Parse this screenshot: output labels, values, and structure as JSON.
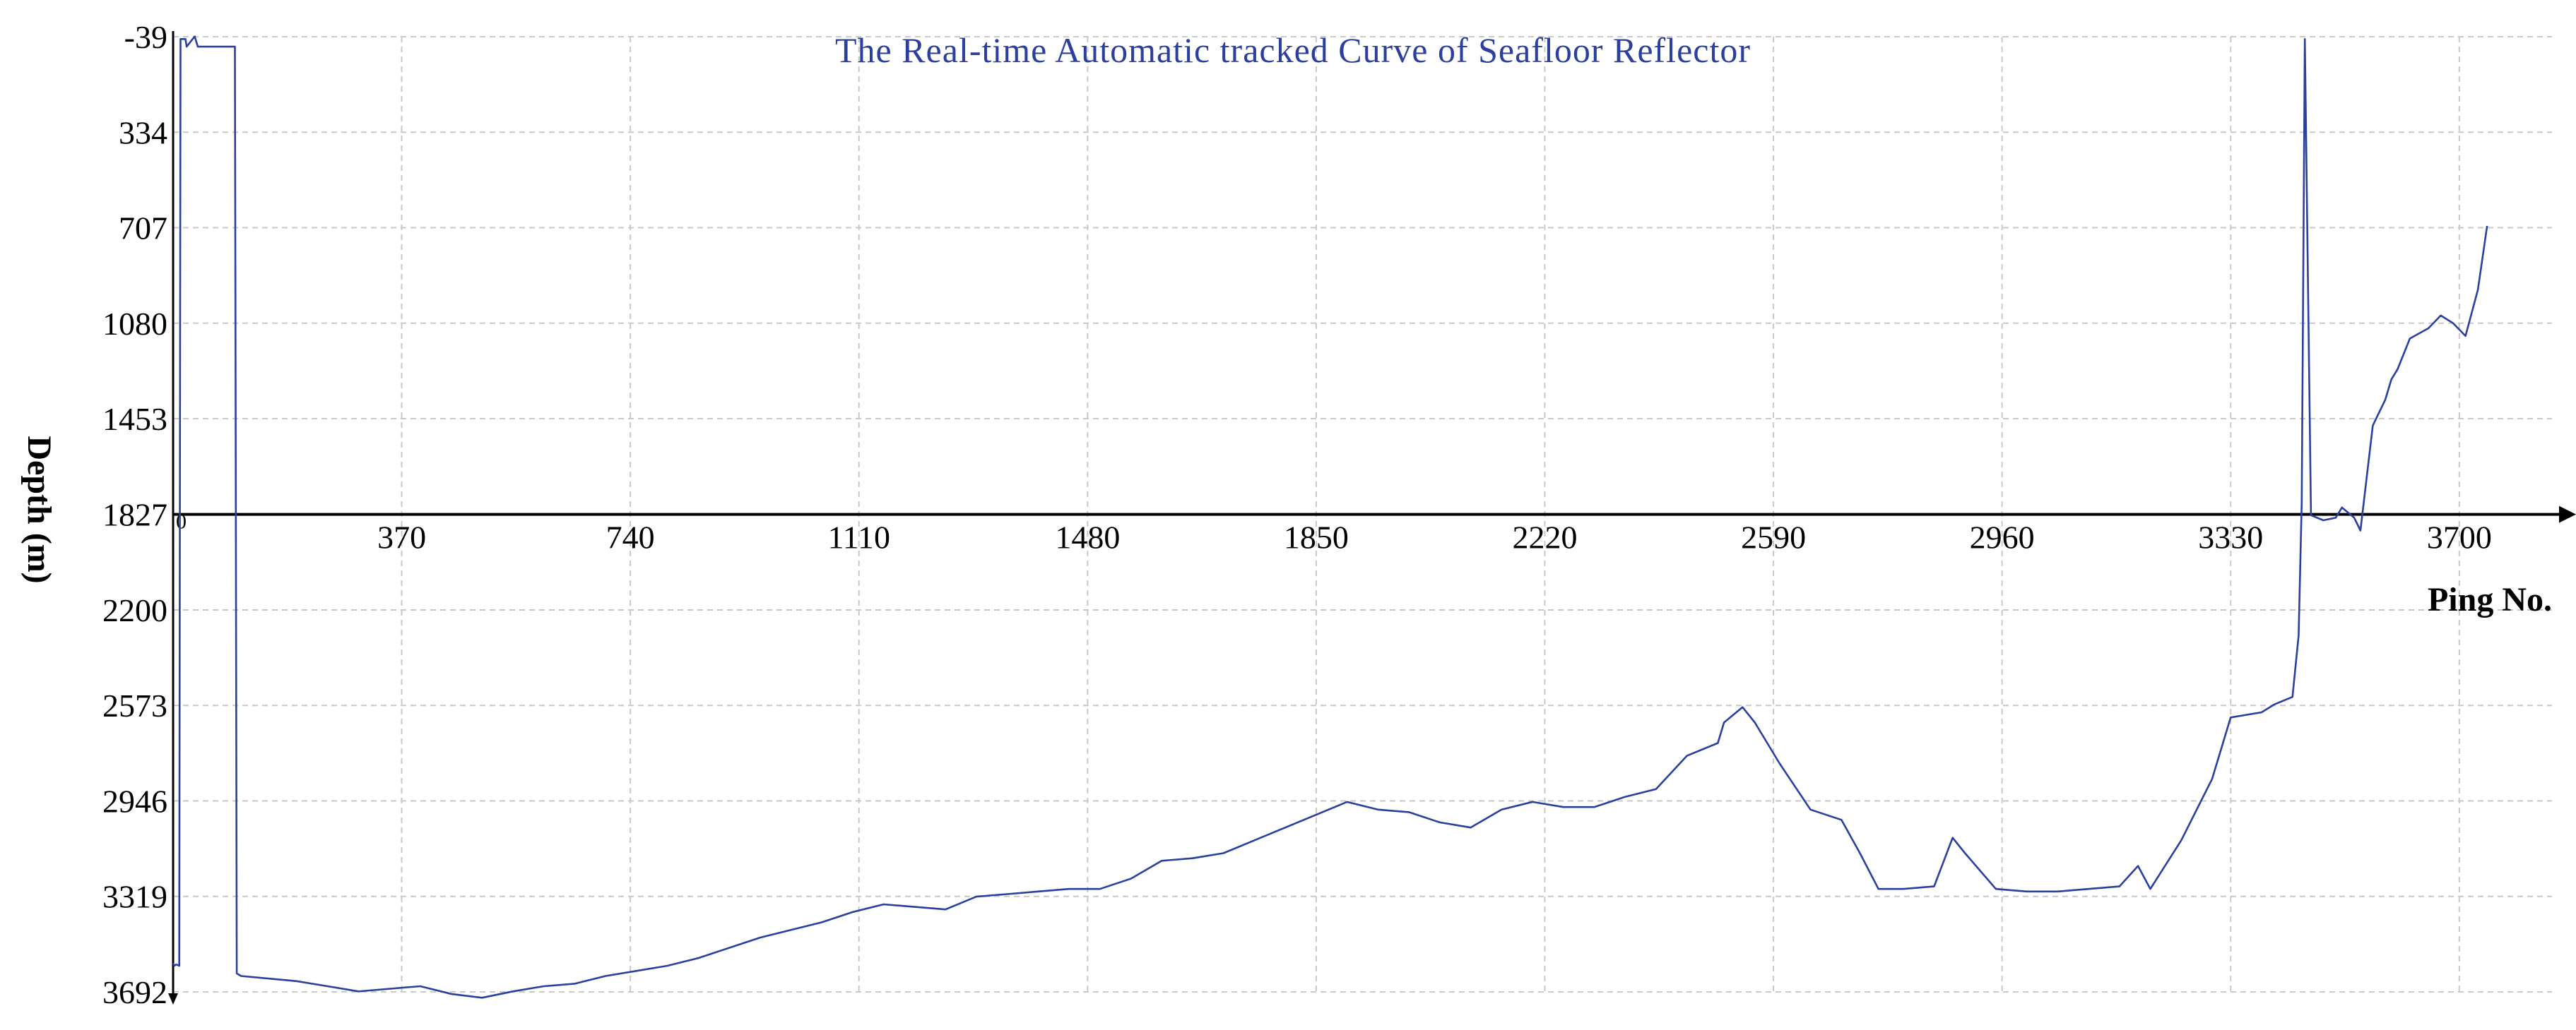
{
  "chart_data": {
    "type": "line",
    "title": "The Real-time Automatic tracked Curve of Seafloor Reflector",
    "xlabel": "Ping No.",
    "ylabel": "Depth (m)",
    "xlim": [
      0,
      3850
    ],
    "ylim": [
      -39,
      3692
    ],
    "y_inverted": true,
    "x_axis_crosses_y_at": 1827,
    "grid": true,
    "legend": "none",
    "colors": {
      "line": "#2b3f9e",
      "title": "#2b3f9e",
      "axis": "#000000",
      "grid": "#c8c8c8"
    },
    "x_ticks": [
      370,
      740,
      1110,
      1480,
      1850,
      2220,
      2590,
      2960,
      3330,
      3700
    ],
    "x_origin_label": "0",
    "y_ticks": [
      -39,
      334,
      707,
      1080,
      1453,
      1827,
      2200,
      2573,
      2946,
      3319,
      3692
    ],
    "series": [
      {
        "x": [
          0,
          2,
          5,
          10,
          12,
          20,
          22,
          35,
          40,
          45,
          50,
          60,
          70,
          80,
          90,
          95,
          98,
          100,
          103,
          110,
          200,
          250,
          300,
          400,
          450,
          500,
          550,
          600,
          650,
          700,
          750,
          800,
          850,
          900,
          950,
          1000,
          1050,
          1100,
          1150,
          1200,
          1250,
          1300,
          1350,
          1400,
          1450,
          1500,
          1550,
          1600,
          1650,
          1700,
          1750,
          1800,
          1850,
          1900,
          1950,
          2000,
          2050,
          2100,
          2150,
          2200,
          2250,
          2300,
          2350,
          2400,
          2450,
          2500,
          2510,
          2540,
          2560,
          2600,
          2650,
          2700,
          2730,
          2760,
          2800,
          2850,
          2880,
          2900,
          2950,
          3000,
          3050,
          3100,
          3150,
          3180,
          3200,
          3250,
          3300,
          3320,
          3330,
          3380,
          3400,
          3430,
          3440,
          3445,
          3450,
          3460,
          3480,
          3500,
          3510,
          3530,
          3540,
          3560,
          3570,
          3580,
          3590,
          3600,
          3620,
          3650,
          3670,
          3690,
          3710,
          3730,
          3745
        ],
        "y": [
          3580,
          3590,
          3585,
          3590,
          -30,
          -30,
          0,
          -40,
          0,
          0,
          0,
          0,
          0,
          0,
          0,
          0,
          0,
          0,
          3620,
          3630,
          3650,
          3670,
          3690,
          3670,
          3700,
          3715,
          3690,
          3670,
          3660,
          3630,
          3610,
          3590,
          3560,
          3520,
          3480,
          3450,
          3420,
          3380,
          3350,
          3360,
          3370,
          3320,
          3310,
          3300,
          3290,
          3290,
          3250,
          3180,
          3170,
          3150,
          3100,
          3050,
          3000,
          2950,
          2980,
          2990,
          3030,
          3050,
          2980,
          2950,
          2970,
          2970,
          2930,
          2900,
          2770,
          2720,
          2640,
          2580,
          2640,
          2800,
          2980,
          3020,
          3150,
          3290,
          3290,
          3280,
          3090,
          3150,
          3290,
          3300,
          3300,
          3290,
          3280,
          3200,
          3290,
          3100,
          2860,
          2700,
          2620,
          2600,
          2570,
          2540,
          2300,
          1780,
          -30,
          1830,
          1850,
          1840,
          1800,
          1840,
          1890,
          1480,
          1430,
          1380,
          1300,
          1260,
          1140,
          1100,
          1050,
          1080,
          1130,
          950,
          700
        ]
      }
    ]
  }
}
